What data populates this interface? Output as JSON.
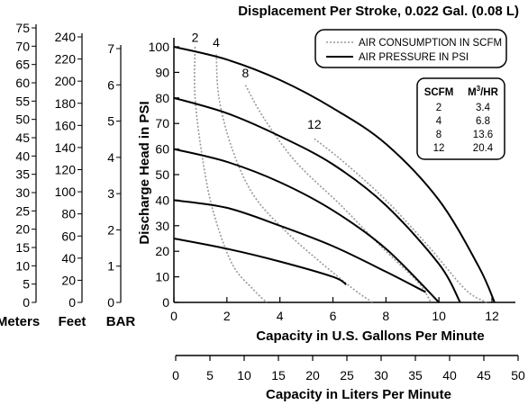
{
  "chart_data": {
    "type": "line",
    "title": "Displacement Per Stroke, 0.022 Gal. (0.08 L)",
    "xlabel": "Capacity in U.S. Gallons Per Minute",
    "ylabel": "Discharge Head in PSI",
    "x2label": "Capacity in Liters Per Minute",
    "xlim": [
      0,
      12
    ],
    "ylim": [
      0,
      100
    ],
    "xticks": [
      0,
      2,
      4,
      6,
      8,
      10,
      12
    ],
    "yticks": [
      0,
      10,
      20,
      30,
      40,
      50,
      60,
      70,
      80,
      90,
      100
    ],
    "x2ticks": [
      0,
      5,
      10,
      15,
      20,
      25,
      30,
      35,
      40,
      45,
      50
    ],
    "grid": false,
    "legend": {
      "position": "top-right",
      "items": [
        {
          "label": "AIR CONSUMPTION IN SCFM",
          "style": "dotted",
          "color": "#999999"
        },
        {
          "label": "AIR PRESSURE IN PSI",
          "style": "solid",
          "color": "#000000"
        }
      ]
    },
    "conversion_table": {
      "headers": [
        "SCFM",
        "M3/HR"
      ],
      "rows": [
        [
          "2",
          "3.4"
        ],
        [
          "4",
          "6.8"
        ],
        [
          "8",
          "13.6"
        ],
        [
          "12",
          "20.4"
        ]
      ]
    },
    "left_scales": [
      {
        "label": "Meters",
        "min": 0,
        "max": 75,
        "step": 5,
        "ticks": [
          "0",
          "5",
          "10",
          "15",
          "20",
          "25",
          "30",
          "35",
          "40",
          "45",
          "50",
          "55",
          "60",
          "65",
          "70",
          "75"
        ]
      },
      {
        "label": "Feet",
        "min": 0,
        "max": 240,
        "step": 20,
        "ticks": [
          "0",
          "20",
          "40",
          "60",
          "80",
          "100",
          "120",
          "140",
          "160",
          "180",
          "200",
          "220",
          "240"
        ]
      },
      {
        "label": "BAR",
        "min": 0,
        "max": 7,
        "step": 1,
        "ticks": [
          "0",
          "1",
          "2",
          "3",
          "4",
          "5",
          "6",
          "7"
        ]
      }
    ],
    "pressure_series": [
      {
        "name": "100 PSI",
        "points": [
          [
            0,
            100
          ],
          [
            2,
            95
          ],
          [
            4,
            87
          ],
          [
            6,
            76
          ],
          [
            8,
            62
          ],
          [
            10,
            40
          ],
          [
            11.5,
            14
          ],
          [
            12.1,
            0
          ]
        ]
      },
      {
        "name": "80 PSI",
        "points": [
          [
            0,
            80
          ],
          [
            2,
            74
          ],
          [
            4,
            65
          ],
          [
            6,
            54
          ],
          [
            8,
            38
          ],
          [
            10,
            15
          ],
          [
            10.8,
            0
          ]
        ]
      },
      {
        "name": "60 PSI",
        "points": [
          [
            0,
            60
          ],
          [
            2,
            55
          ],
          [
            4,
            47
          ],
          [
            6,
            36
          ],
          [
            8,
            21
          ],
          [
            10,
            0
          ]
        ]
      },
      {
        "name": "40 PSI",
        "points": [
          [
            0,
            40
          ],
          [
            2,
            37
          ],
          [
            4,
            30
          ],
          [
            6,
            22
          ],
          [
            8,
            12
          ],
          [
            9.5,
            4
          ]
        ]
      },
      {
        "name": "20 PSI",
        "points": [
          [
            0,
            25
          ],
          [
            2,
            21
          ],
          [
            4,
            16
          ],
          [
            6,
            10
          ],
          [
            6.5,
            7
          ]
        ]
      }
    ],
    "air_series": [
      {
        "name": "2",
        "label_at": [
          0.8,
          102
        ],
        "points": [
          [
            0.8,
            100
          ],
          [
            0.8,
            80
          ],
          [
            1.1,
            55
          ],
          [
            1.5,
            35
          ],
          [
            2.2,
            15
          ],
          [
            3,
            5
          ],
          [
            3.5,
            0
          ]
        ]
      },
      {
        "name": "4",
        "label_at": [
          1.6,
          100
        ],
        "points": [
          [
            1.6,
            97
          ],
          [
            1.7,
            80
          ],
          [
            2.2,
            60
          ],
          [
            3,
            42
          ],
          [
            4.2,
            28
          ],
          [
            5.5,
            16
          ],
          [
            6.8,
            5
          ],
          [
            7.5,
            0
          ]
        ]
      },
      {
        "name": "8",
        "label_at": [
          2.7,
          88
        ],
        "points": [
          [
            2.7,
            85
          ],
          [
            3.4,
            72
          ],
          [
            4.6,
            55
          ],
          [
            6.3,
            38
          ],
          [
            7.8,
            22
          ],
          [
            9.2,
            8
          ],
          [
            9.7,
            0
          ]
        ]
      },
      {
        "name": "12",
        "label_at": [
          5.3,
          68
        ],
        "points": [
          [
            5.3,
            64
          ],
          [
            6.4,
            55
          ],
          [
            8,
            40
          ],
          [
            9.6,
            22
          ],
          [
            11,
            5
          ],
          [
            11.8,
            0
          ]
        ]
      }
    ]
  }
}
